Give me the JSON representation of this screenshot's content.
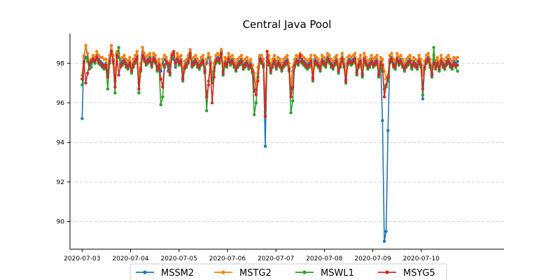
{
  "chart_data": {
    "type": "line",
    "title": "Central Java Pool",
    "xlabel": "",
    "ylabel": "",
    "x_start": "2020-07-03",
    "x_end": "2020-07-10T18:00",
    "xlim": [
      "2020-07-02T18:00",
      "2020-07-11T17:00"
    ],
    "ylim": [
      88.6,
      99.5
    ],
    "x_ticks": [
      "2020-07-03",
      "2020-07-04",
      "2020-07-05",
      "2020-07-06",
      "2020-07-07",
      "2020-07-08",
      "2020-07-09",
      "2020-07-10"
    ],
    "y_ticks": [
      90,
      92,
      94,
      96,
      98
    ],
    "grid": "y-dashed",
    "legend_position": "bottom-center",
    "series": [
      {
        "name": "MSSM2",
        "color": "#1f77b4",
        "values": [
          95.2,
          98.3,
          98.9,
          98.3,
          97.9,
          98.0,
          98.3,
          98.2,
          98.4,
          98.2,
          98.1,
          98.0,
          97.9,
          98.0,
          97.5,
          98.2,
          98.9,
          98.2,
          97.1,
          98.5,
          98.3,
          98.0,
          98.1,
          98.2,
          98.0,
          97.9,
          98.1,
          97.7,
          98.0,
          98.2,
          98.4,
          97.0,
          97.8,
          98.6,
          98.3,
          98.1,
          98.2,
          98.3,
          98.0,
          98.3,
          98.2,
          97.8,
          98.0,
          97.6,
          98.0,
          98.2,
          98.1,
          97.6,
          97.9,
          98.3,
          98.2,
          97.8,
          98.3,
          98.1,
          98.2,
          97.3,
          97.9,
          98.0,
          98.2,
          98.6,
          98.0,
          98.1,
          98.2,
          98.0,
          97.9,
          98.1,
          98.2,
          97.7,
          98.0,
          98.3,
          98.1,
          97.2,
          97.8,
          98.2,
          98.3,
          98.2,
          98.6,
          97.6,
          98.1,
          98.0,
          98.3,
          98.1,
          98.2,
          98.0,
          97.8,
          98.0,
          98.1,
          98.2,
          97.9,
          98.0,
          98.1,
          97.9,
          98.0,
          97.7,
          97.2,
          96.7,
          97.5,
          98.3,
          98.2,
          98.0,
          93.8,
          98.3,
          98.1,
          97.7,
          98.0,
          98.2,
          97.9,
          98.1,
          98.0,
          97.8,
          98.0,
          98.1,
          98.2,
          97.8,
          96.7,
          97.6,
          98.0,
          98.2,
          98.1,
          98.3,
          98.2,
          98.1,
          98.0,
          97.9,
          98.0,
          98.2,
          97.3,
          98.2,
          98.1,
          98.0,
          97.8,
          98.2,
          98.1,
          98.0,
          98.3,
          98.2,
          98.0,
          97.9,
          98.1,
          98.2,
          97.7,
          98.0,
          98.3,
          98.0,
          97.2,
          98.1,
          98.2,
          98.1,
          98.2,
          98.3,
          97.6,
          98.0,
          98.2,
          97.5,
          98.3,
          98.1,
          97.9,
          98.0,
          98.2,
          98.0,
          98.1,
          98.2,
          97.5,
          98.1,
          95.1,
          89.0,
          89.5,
          94.6,
          98.2,
          98.3,
          98.0,
          97.9,
          98.3,
          98.1,
          98.2,
          98.0,
          97.8,
          98.0,
          98.1,
          98.2,
          97.9,
          98.1,
          98.0,
          97.9,
          98.2,
          98.0,
          96.2,
          97.9,
          98.2,
          98.3,
          98.0,
          97.5,
          98.2,
          97.9,
          98.1,
          97.8,
          98.2,
          98.0,
          97.9,
          98.1,
          98.2,
          98.0,
          97.9,
          98.1,
          98.0,
          98.1
        ]
      },
      {
        "name": "MSTG2",
        "color": "#ff7f0e",
        "values": [
          97.4,
          98.4,
          98.9,
          98.5,
          98.1,
          98.2,
          98.4,
          98.3,
          98.6,
          98.4,
          98.3,
          98.3,
          98.2,
          98.2,
          97.8,
          98.4,
          98.9,
          98.4,
          97.5,
          98.6,
          98.5,
          98.2,
          98.3,
          98.4,
          98.2,
          98.1,
          98.3,
          97.9,
          98.2,
          98.4,
          98.6,
          97.3,
          98.0,
          98.8,
          98.5,
          98.3,
          98.4,
          98.5,
          98.2,
          98.5,
          98.4,
          98.0,
          98.2,
          97.8,
          98.2,
          98.4,
          98.3,
          97.9,
          98.1,
          98.5,
          98.4,
          98.0,
          98.5,
          98.3,
          98.4,
          97.6,
          98.1,
          98.2,
          98.4,
          98.7,
          98.2,
          98.3,
          98.4,
          98.2,
          98.1,
          98.3,
          98.4,
          97.9,
          98.2,
          98.5,
          98.3,
          97.4,
          98.0,
          98.4,
          98.5,
          98.4,
          98.7,
          97.8,
          98.3,
          98.2,
          98.5,
          98.3,
          98.4,
          98.2,
          98.0,
          98.2,
          98.3,
          98.4,
          98.1,
          98.2,
          98.3,
          98.1,
          98.2,
          97.9,
          97.5,
          96.8,
          97.8,
          98.4,
          98.4,
          98.2,
          96.0,
          98.6,
          98.4,
          97.9,
          98.2,
          98.4,
          98.1,
          98.3,
          98.2,
          98.0,
          98.2,
          98.3,
          98.4,
          98.0,
          96.9,
          97.8,
          98.2,
          98.4,
          98.3,
          98.5,
          98.4,
          98.3,
          98.2,
          98.1,
          98.2,
          98.4,
          97.5,
          98.4,
          98.3,
          98.2,
          98.0,
          98.4,
          98.3,
          98.2,
          98.5,
          98.4,
          98.2,
          98.1,
          98.3,
          98.4,
          97.9,
          98.2,
          98.5,
          98.2,
          97.4,
          98.3,
          98.4,
          98.3,
          98.4,
          98.5,
          97.8,
          98.2,
          98.4,
          97.7,
          98.5,
          98.3,
          98.1,
          98.2,
          98.4,
          98.2,
          98.3,
          98.4,
          97.7,
          98.3,
          98.2,
          97.6,
          97.2,
          97.4,
          98.4,
          98.5,
          98.2,
          98.1,
          98.5,
          98.3,
          98.4,
          98.2,
          98.0,
          98.2,
          98.3,
          98.4,
          98.1,
          98.3,
          98.2,
          98.1,
          98.4,
          98.2,
          97.4,
          98.1,
          98.4,
          98.5,
          98.2,
          97.7,
          98.4,
          98.1,
          98.3,
          98.0,
          98.4,
          98.2,
          98.1,
          98.3,
          98.4,
          98.2,
          98.1,
          98.3,
          98.2,
          98.3
        ]
      },
      {
        "name": "MSWL1",
        "color": "#2ca02c",
        "values": [
          96.9,
          98.0,
          98.3,
          98.1,
          97.7,
          97.8,
          98.1,
          98.0,
          98.2,
          98.0,
          97.9,
          97.8,
          97.7,
          97.8,
          96.7,
          98.0,
          98.6,
          98.0,
          96.5,
          98.3,
          98.8,
          97.8,
          97.9,
          98.0,
          97.8,
          97.7,
          97.9,
          97.5,
          97.8,
          98.0,
          98.2,
          96.5,
          97.6,
          98.4,
          98.1,
          97.9,
          98.0,
          98.1,
          97.8,
          98.1,
          98.0,
          97.6,
          97.8,
          95.9,
          96.3,
          97.8,
          98.0,
          97.9,
          97.4,
          98.3,
          98.5,
          97.9,
          98.1,
          97.9,
          98.0,
          97.1,
          97.7,
          97.8,
          98.0,
          98.4,
          97.8,
          97.9,
          98.0,
          97.8,
          97.7,
          97.9,
          98.0,
          97.5,
          95.6,
          97.1,
          97.9,
          97.0,
          97.6,
          98.0,
          98.1,
          98.0,
          98.4,
          97.4,
          97.9,
          97.8,
          98.1,
          97.9,
          98.0,
          97.8,
          97.6,
          97.8,
          97.9,
          98.0,
          97.7,
          97.8,
          97.9,
          97.7,
          97.8,
          97.5,
          95.4,
          96.0,
          97.3,
          98.1,
          98.0,
          97.8,
          95.6,
          98.1,
          97.9,
          97.5,
          97.8,
          98.0,
          97.7,
          97.9,
          97.8,
          97.6,
          97.8,
          97.9,
          98.0,
          97.6,
          95.5,
          96.1,
          97.8,
          98.0,
          97.9,
          98.1,
          98.0,
          97.9,
          97.8,
          97.7,
          97.8,
          98.0,
          97.1,
          98.0,
          97.9,
          97.8,
          97.6,
          98.0,
          97.9,
          97.8,
          98.1,
          98.0,
          97.8,
          97.7,
          97.9,
          98.0,
          97.5,
          97.8,
          98.1,
          97.8,
          97.0,
          97.9,
          98.0,
          97.9,
          98.0,
          98.1,
          97.4,
          97.8,
          98.0,
          97.3,
          98.1,
          97.9,
          97.7,
          97.8,
          98.0,
          97.8,
          97.9,
          98.0,
          97.3,
          97.9,
          97.6,
          96.7,
          96.8,
          97.1,
          98.0,
          98.1,
          97.8,
          97.7,
          98.1,
          97.9,
          98.0,
          97.8,
          97.6,
          97.8,
          97.9,
          98.0,
          97.7,
          97.9,
          97.8,
          97.7,
          98.0,
          97.8,
          96.4,
          97.7,
          98.0,
          98.1,
          97.8,
          97.3,
          98.8,
          97.7,
          97.9,
          97.6,
          98.0,
          97.8,
          97.7,
          97.9,
          98.0,
          97.8,
          97.7,
          97.9,
          97.8,
          97.6
        ]
      },
      {
        "name": "MSYG5",
        "color": "#d62728",
        "values": [
          97.2,
          98.1,
          97.0,
          97.5,
          98.0,
          98.1,
          98.2,
          98.1,
          98.3,
          98.1,
          98.0,
          97.9,
          97.8,
          97.9,
          97.3,
          98.1,
          98.6,
          98.1,
          96.8,
          98.4,
          97.4,
          97.9,
          98.0,
          98.1,
          97.9,
          97.8,
          98.0,
          97.6,
          97.9,
          98.1,
          98.3,
          96.7,
          97.7,
          98.4,
          98.2,
          98.0,
          98.1,
          98.2,
          97.9,
          98.2,
          98.1,
          97.7,
          97.9,
          97.2,
          96.8,
          97.9,
          98.1,
          98.0,
          97.5,
          98.4,
          98.6,
          98.0,
          98.2,
          98.0,
          98.1,
          97.2,
          97.8,
          97.9,
          98.1,
          98.5,
          97.9,
          98.0,
          98.1,
          97.9,
          97.8,
          98.0,
          98.1,
          97.6,
          96.3,
          96.9,
          98.0,
          96.0,
          97.3,
          98.1,
          98.2,
          98.1,
          98.5,
          97.5,
          98.0,
          97.9,
          98.2,
          98.0,
          98.1,
          97.9,
          97.7,
          97.9,
          98.0,
          98.1,
          97.8,
          97.9,
          98.0,
          97.8,
          97.9,
          97.6,
          96.6,
          96.4,
          97.1,
          98.2,
          98.1,
          97.9,
          95.3,
          98.6,
          98.0,
          97.6,
          97.9,
          98.1,
          97.8,
          98.0,
          97.9,
          97.7,
          97.9,
          98.0,
          98.1,
          97.7,
          96.3,
          96.8,
          97.9,
          98.1,
          98.0,
          98.4,
          98.1,
          98.0,
          97.9,
          97.8,
          97.9,
          98.1,
          97.2,
          98.1,
          98.0,
          97.9,
          97.7,
          98.1,
          98.0,
          97.9,
          98.2,
          98.1,
          97.9,
          97.8,
          98.0,
          98.1,
          97.6,
          97.9,
          98.2,
          97.9,
          97.1,
          98.0,
          98.1,
          98.0,
          98.1,
          98.2,
          97.5,
          97.9,
          98.1,
          97.4,
          98.2,
          98.0,
          97.8,
          97.9,
          98.1,
          97.9,
          98.0,
          98.1,
          97.4,
          98.0,
          97.9,
          96.3,
          96.9,
          97.3,
          98.1,
          98.2,
          97.9,
          97.8,
          98.2,
          98.0,
          98.1,
          97.9,
          97.7,
          97.9,
          98.0,
          98.1,
          97.8,
          98.0,
          97.9,
          97.8,
          98.1,
          97.9,
          96.7,
          97.8,
          98.1,
          98.2,
          97.9,
          97.4,
          98.0,
          97.8,
          98.0,
          97.7,
          98.1,
          97.9,
          97.8,
          98.0,
          98.1,
          97.9,
          97.8,
          98.0,
          97.9,
          97.9
        ]
      }
    ]
  }
}
